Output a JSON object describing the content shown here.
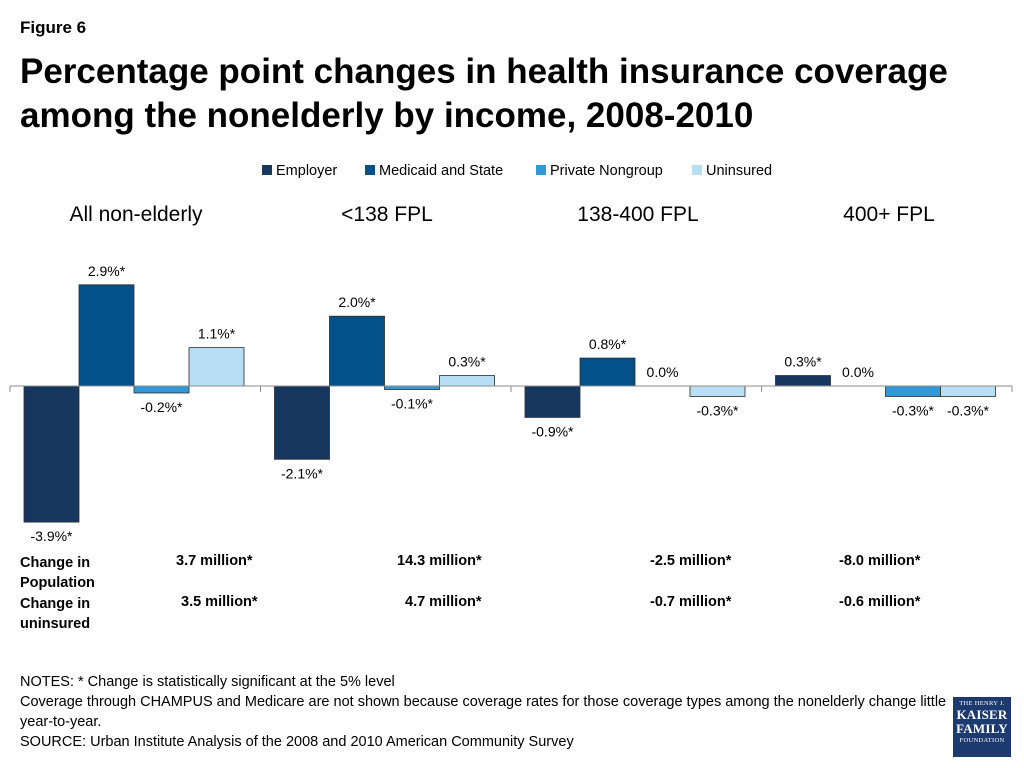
{
  "figure_label": "Figure 6",
  "title": "Percentage point changes in health insurance coverage among the nonelderly by income, 2008-2010",
  "colors": {
    "employer": "#17375e",
    "medicaid": "#03508a",
    "private": "#3399d6",
    "uninsured": "#b7def5"
  },
  "chart_data": {
    "type": "bar",
    "title": "Percentage point changes in health insurance coverage among the nonelderly by income, 2008-2010",
    "categories": [
      "All non-elderly",
      "<138 FPL",
      "138-400 FPL",
      "400+ FPL"
    ],
    "series": [
      {
        "name": "Employer",
        "values": [
          -3.9,
          -2.1,
          -0.9,
          0.3
        ],
        "labels": [
          "-3.9%*",
          "-2.1%*",
          "-0.9%*",
          "0.3%*"
        ]
      },
      {
        "name": "Medicaid and State",
        "values": [
          2.9,
          2.0,
          0.8,
          0.0
        ],
        "labels": [
          "2.9%*",
          "2.0%*",
          "0.8%*",
          "0.0%"
        ]
      },
      {
        "name": "Private Nongroup",
        "values": [
          -0.2,
          -0.1,
          0.0,
          -0.3
        ],
        "labels": [
          "-0.2%*",
          "-0.1%*",
          "0.0%",
          "-0.3%*"
        ]
      },
      {
        "name": "Uninsured",
        "values": [
          1.1,
          0.3,
          -0.3,
          -0.3
        ],
        "labels": [
          "1.1%*",
          "0.3%*",
          "-0.3%*",
          "-0.3%*"
        ]
      }
    ],
    "legend_position": "top-center",
    "xlabel": "",
    "ylabel": "",
    "ylim": [
      -3.9,
      2.9
    ]
  },
  "table": {
    "rows": [
      {
        "label": "Change in Population",
        "values": [
          "3.7 million*",
          "14.3 million*",
          "-2.5 million*",
          "-8.0 million*"
        ]
      },
      {
        "label": "Change in uninsured",
        "values": [
          "3.5 million*",
          "4.7 million*",
          "-0.7 million*",
          "-0.6 million*"
        ]
      }
    ]
  },
  "notes": [
    "NOTES: * Change is statistically significant at the 5% level",
    "Coverage through CHAMPUS and Medicare are not shown because coverage rates for those coverage types among the nonelderly change little year-to-year.",
    "SOURCE: Urban Institute Analysis of the 2008 and 2010 American Community Survey"
  ],
  "logo": {
    "line1": "THE HENRY J.",
    "line2a": "KAISER",
    "line2b": "FAMILY",
    "line3": "FOUNDATION"
  }
}
